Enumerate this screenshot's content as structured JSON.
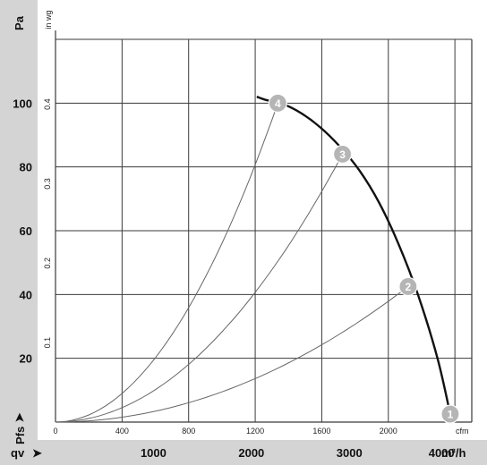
{
  "chart_data": {
    "type": "line",
    "y_label": "Pa",
    "y_label_secondary": "in wg",
    "y_label_bottom": "Pfs",
    "x_label": "qv",
    "x_unit": "m³/h",
    "x_unit_secondary": "cfm",
    "y_ticks_pa": [
      "20",
      "40",
      "60",
      "80",
      "100"
    ],
    "y_ticks_inwg": [
      "0.1",
      "0.2",
      "0.3",
      "0.4"
    ],
    "x_ticks_cfm": [
      "0",
      "400",
      "800",
      "1200",
      "1600",
      "2000"
    ],
    "x_ticks_m3h": [
      "1000",
      "2000",
      "3000",
      "4000"
    ],
    "xlim_m3h": [
      0,
      4250
    ],
    "ylim_pa": [
      0,
      120
    ],
    "grid": true,
    "fan_curve": {
      "x": [
        2055,
        2150,
        2300,
        2500,
        2700,
        2900,
        3100,
        3300,
        3500,
        3700,
        3900,
        4030
      ],
      "y": [
        102,
        101,
        100,
        97,
        92.5,
        86.5,
        79,
        69,
        56,
        40,
        20,
        2.5
      ]
    },
    "system_curves": [
      {
        "id": "4",
        "x": [
          0,
          2270
        ],
        "y": [
          0,
          100
        ]
      },
      {
        "id": "3",
        "x": [
          0,
          2930
        ],
        "y": [
          0,
          84
        ]
      },
      {
        "id": "2",
        "x": [
          0,
          3600
        ],
        "y": [
          0,
          42.5
        ]
      }
    ],
    "operating_points": [
      {
        "label": "1",
        "x": 4030,
        "y": 2.5
      },
      {
        "label": "2",
        "x": 3600,
        "y": 42.5
      },
      {
        "label": "3",
        "x": 2930,
        "y": 84
      },
      {
        "label": "4",
        "x": 2270,
        "y": 100
      }
    ]
  }
}
